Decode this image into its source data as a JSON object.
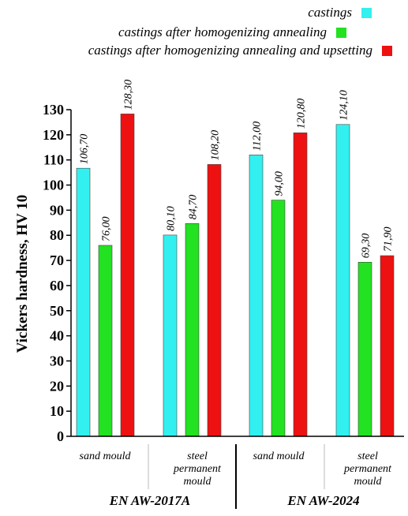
{
  "chart_data": {
    "type": "bar",
    "ylabel": "Vickers hardness, HV 10",
    "ylim": [
      0,
      130
    ],
    "ytick_step": 10,
    "grid": false,
    "legend_position": "top",
    "series": [
      {
        "name": "castings",
        "color": "#33f0f0",
        "values": [
          106.7,
          80.1,
          112.0,
          124.1
        ]
      },
      {
        "name": "castings after homogenizing annealing",
        "color": "#22e222",
        "values": [
          76.0,
          84.7,
          94.0,
          69.3
        ]
      },
      {
        "name": "castings after homogenizing annealing and upsetting",
        "color": "#ee1111",
        "values": [
          128.3,
          108.2,
          120.8,
          71.9
        ]
      }
    ],
    "value_labels": [
      [
        "106,70",
        "80,10",
        "112,00",
        "124,10"
      ],
      [
        "76,00",
        "84,70",
        "94,00",
        "69,30"
      ],
      [
        "128,30",
        "108,20",
        "120,80",
        "71,90"
      ]
    ],
    "categories": [
      {
        "lines": [
          "sand mould"
        ]
      },
      {
        "lines": [
          "steel",
          "permanent",
          "mould"
        ]
      },
      {
        "lines": [
          "sand mould"
        ]
      },
      {
        "lines": [
          "steel",
          "permanent",
          "mould"
        ]
      }
    ],
    "groups": [
      "EN AW-2017A",
      "EN AW-2024"
    ]
  }
}
